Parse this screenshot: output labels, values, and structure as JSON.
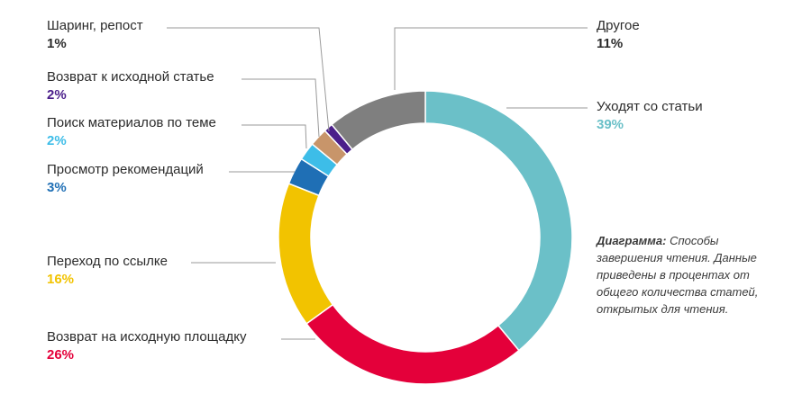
{
  "chart_data": {
    "type": "pie",
    "variant": "donut",
    "categories": [
      "Уходят со статьи",
      "Возврат на исходную площадку",
      "Переход по ссылке",
      "Просмотр рекомендаций",
      "Поиск материалов по теме",
      "Возврат к исходной статье",
      "Шаринг, репост",
      "Другое"
    ],
    "values": [
      39,
      26,
      16,
      3,
      2,
      2,
      1,
      11
    ],
    "value_labels": [
      "39%",
      "26%",
      "16%",
      "3%",
      "2%",
      "2%",
      "1%",
      "11%"
    ],
    "colors": [
      "#6bc0c8",
      "#e4003a",
      "#f2c300",
      "#1f6fb5",
      "#3dbde8",
      "#c8956a",
      "#4b1e8a",
      "#7f7f7f"
    ],
    "label_colors": [
      "#6bc0c8",
      "#e4003a",
      "#f2c300",
      "#1f6fb5",
      "#3dbde8",
      "#4b1e8a",
      "#2b2b2b",
      "#2b2b2b"
    ],
    "legend": "callouts",
    "caption_title": "Диаграмма:",
    "caption_text": "Способы завершения чтения. Данные приведены в процентах от общего количества статей, открытых для чтения."
  }
}
